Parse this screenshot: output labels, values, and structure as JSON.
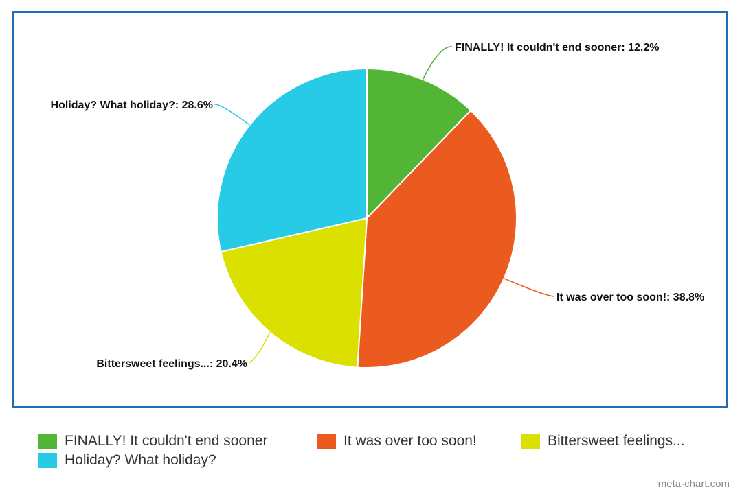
{
  "chart_data": {
    "type": "pie",
    "title": "",
    "slices": [
      {
        "label": "FINALLY! It couldn't end sooner",
        "data_label": "FINALLY! It couldn't end sooner: 12.2%",
        "value": 12.2,
        "color": "#52b535"
      },
      {
        "label": "It was over too soon!",
        "data_label": "It was over too soon!: 38.8%",
        "value": 38.8,
        "color": "#eb5a1e"
      },
      {
        "label": "Bittersweet feelings...",
        "data_label": "Bittersweet feelings...: 20.4%",
        "value": 20.4,
        "color": "#dce000"
      },
      {
        "label": "Holiday? What holiday?",
        "data_label": "Holiday? What holiday?: 28.6%",
        "value": 28.6,
        "color": "#27cbe6"
      }
    ],
    "start_angle_deg": 0,
    "direction": "clockwise",
    "legend_position": "bottom"
  },
  "frame_color": "#1f6fb2",
  "watermark": "meta-chart.com"
}
